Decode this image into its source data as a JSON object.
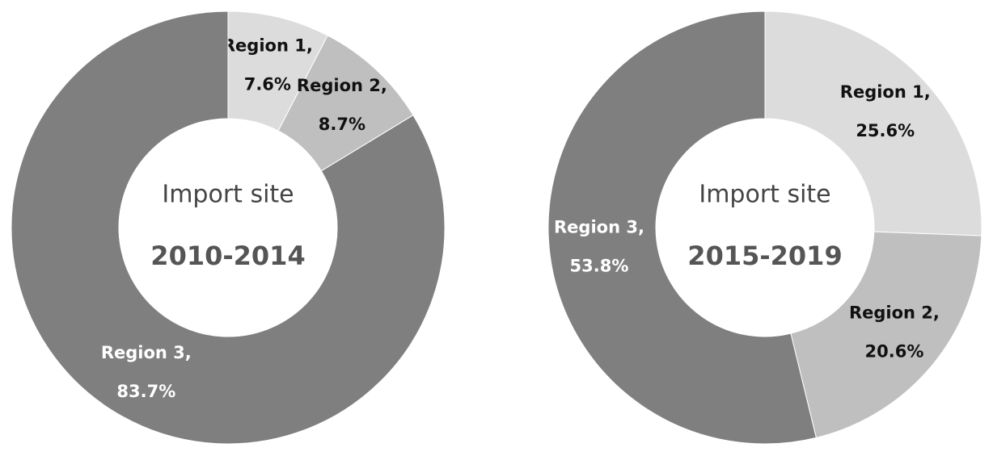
{
  "chart_data": [
    {
      "type": "donut",
      "title": "Import site",
      "subtitle": "2010-2014",
      "categories": [
        "Region 1,",
        "Region 2,",
        "Region 3,"
      ],
      "values": [
        7.6,
        8.7,
        83.7
      ],
      "value_labels": [
        "7.6%",
        "8.7%",
        "83.7%"
      ],
      "colors": [
        "#dcdcdc",
        "#bfbfbf",
        "#7f7f7f"
      ]
    },
    {
      "type": "donut",
      "title": "Import site",
      "subtitle": "2015-2019",
      "categories": [
        "Region 1,",
        "Region 2,",
        "Region 3,"
      ],
      "values": [
        25.6,
        20.6,
        53.8
      ],
      "value_labels": [
        "25.6%",
        "20.6%",
        "53.8%"
      ],
      "colors": [
        "#dcdcdc",
        "#bfbfbf",
        "#7f7f7f"
      ]
    }
  ]
}
